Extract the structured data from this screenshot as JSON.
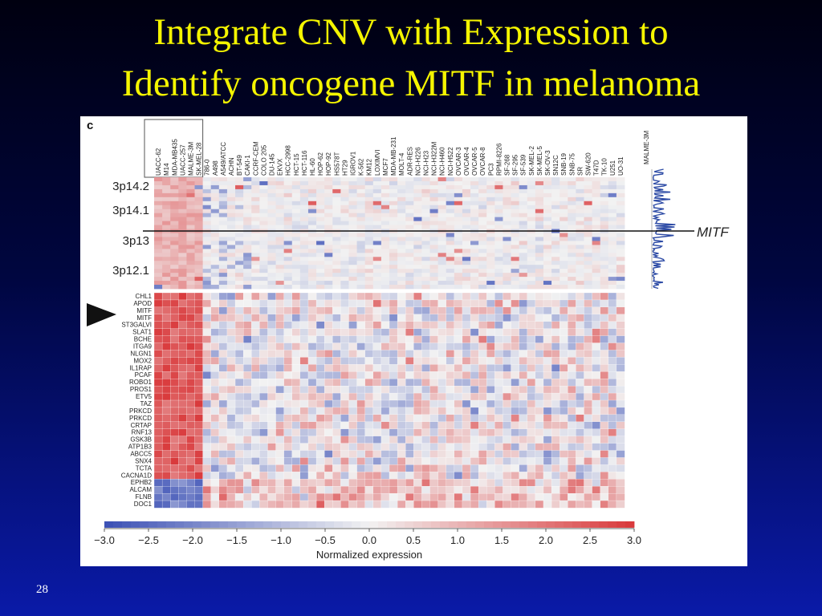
{
  "slide": {
    "title_line1": "Integrate CNV with Expression to",
    "title_line2": "Identify oncogene MITF in melanoma",
    "page_number": "28"
  },
  "chart_data": {
    "type": "heatmap",
    "panel_label": "c",
    "cell_lines": [
      "UACC-62",
      "M14",
      "MDA-MB435",
      "UACC-257",
      "MALME-3M",
      "SK-MEL-28",
      "786-0",
      "A498",
      "A549/ATCC",
      "ACHN",
      "BT-549",
      "CAKI-1",
      "CCRF-CEM",
      "COLO 205",
      "DU-145",
      "EKVX",
      "HCC-2998",
      "HCT-15",
      "HCT-116",
      "HL-60",
      "HOP-62",
      "HOP-92",
      "HS578T",
      "HT29",
      "IGROV1",
      "K-562",
      "KM12",
      "LOXIMVI",
      "MCF7",
      "MDA-MB-231",
      "MOLT-4",
      "ADR-RES",
      "NCI-H226",
      "NCI-H23",
      "NCI-H322M",
      "NCI-H460",
      "NCI-H522",
      "OVCAR-3",
      "OVCAR-4",
      "OVCAR-5",
      "OVCAR-8",
      "PC3",
      "RPMI-8226",
      "SF-268",
      "SF-295",
      "SF-539",
      "SK-MEL-2",
      "SK-MEL-5",
      "SK-OV-3",
      "SN12C",
      "SNB-19",
      "SNB-75",
      "SR",
      "SW-620",
      "T47D",
      "TK-10",
      "U251",
      "UO-31"
    ],
    "cnv_profile_label": "MALME-3M",
    "chromosome_bands": [
      "3p14.2",
      "3p14.1",
      "3p13",
      "3p12.1"
    ],
    "marker_gene": "MITF",
    "genes": [
      "CHL1",
      "APOD",
      "MITF",
      "MITF",
      "ST3GALVI",
      "SLAT1",
      "BCHE",
      "ITGA9",
      "NLGN1",
      "MOX2",
      "IL1RAP",
      "PCAF",
      "ROBO1",
      "PROS1",
      "ETV5",
      "TAZ",
      "PRKCD",
      "PRKCD",
      "CRTAP",
      "RNF13",
      "GSK3B",
      "ATP1B3",
      "ABCC5",
      "SNX4",
      "TCTA",
      "CACNA1D",
      "EPHB2",
      "ALCAM",
      "FLNB",
      "DOC1"
    ],
    "colorbar": {
      "ticks": [
        "−3.0",
        "−2.5",
        "−2.0",
        "−1.5",
        "−1.0",
        "−0.5",
        "0.0",
        "0.5",
        "1.0",
        "1.5",
        "2.0",
        "2.5",
        "3.0"
      ],
      "range": [
        -3.0,
        3.0
      ],
      "label": "Normalized expression",
      "low_color": "#3a4fb5",
      "mid_color": "#f2f2f2",
      "high_color": "#d9383a"
    }
  }
}
